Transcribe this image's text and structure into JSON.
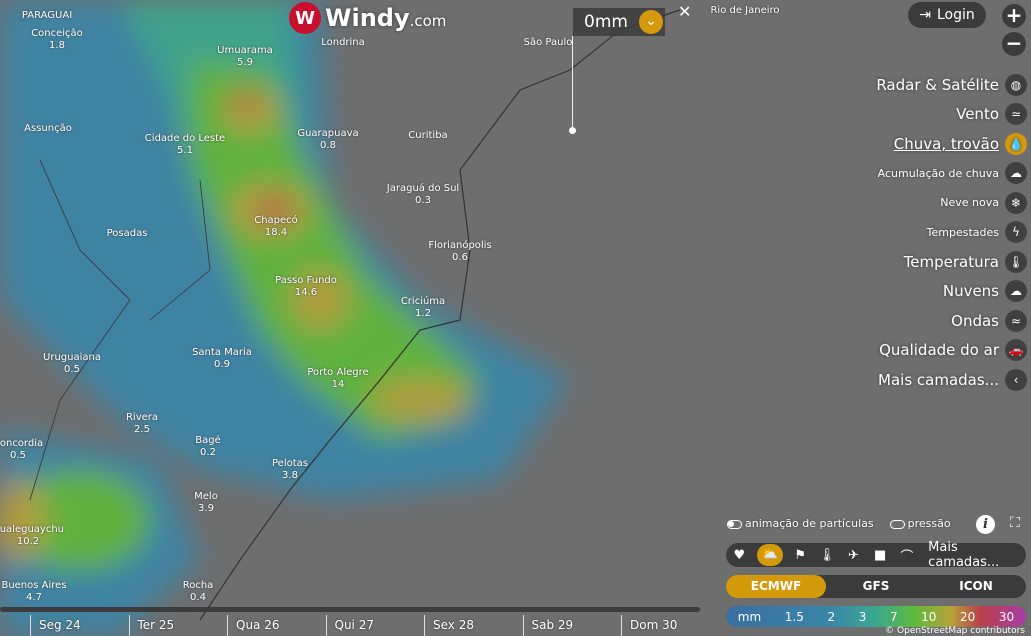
{
  "app": {
    "logo_text": "Windy",
    "logo_suffix": ".com",
    "logo_mark": "W"
  },
  "picker": {
    "value": "0mm",
    "close": "✕"
  },
  "header": {
    "login": "Login",
    "zoom_in": "+",
    "zoom_out": "−"
  },
  "layers": [
    {
      "label": "Radar & Satélite",
      "icon": "globe-icon",
      "glyph": "◍",
      "small": false
    },
    {
      "label": "Vento",
      "icon": "wind-icon",
      "glyph": "≃",
      "small": false
    },
    {
      "label": "Chuva, trovão",
      "icon": "raindrop-icon",
      "glyph": "💧",
      "small": false,
      "active": true
    },
    {
      "label": "Acumulação de chuva",
      "icon": "cloud-rain-icon",
      "glyph": "☁",
      "small": true
    },
    {
      "label": "Neve nova",
      "icon": "snowflake-icon",
      "glyph": "❄",
      "small": true
    },
    {
      "label": "Tempestades",
      "icon": "lightning-icon",
      "glyph": "ϟ",
      "small": true
    },
    {
      "label": "Temperatura",
      "icon": "thermometer-icon",
      "glyph": "🌡",
      "small": false
    },
    {
      "label": "Nuvens",
      "icon": "cloud-icon",
      "glyph": "☁",
      "small": false
    },
    {
      "label": "Ondas",
      "icon": "waves-icon",
      "glyph": "≈",
      "small": false
    },
    {
      "label": "Qualidade do ar",
      "icon": "car-icon",
      "glyph": "🚗",
      "small": false
    },
    {
      "label": "Mais camadas...",
      "icon": "chevron-left-icon",
      "glyph": "‹",
      "small": false
    }
  ],
  "options": {
    "particles": "animação de partículas",
    "pressure": "pressão",
    "info": "i",
    "fullscreen": "⛶"
  },
  "quickbar": {
    "icons": [
      "heart-icon",
      "weather-icon",
      "windsock-icon",
      "thermometer-icon",
      "airplane-icon",
      "camera-icon",
      "satellite-dish-icon"
    ],
    "glyphs": [
      "♥",
      "⛅",
      "⚑",
      "🌡",
      "✈",
      "■",
      "⌒"
    ],
    "more": "Mais camadas..."
  },
  "models": [
    "ECMWF",
    "GFS",
    "ICON"
  ],
  "active_model": "ECMWF",
  "legend": [
    "mm",
    "1.5",
    "2",
    "3",
    "7",
    "10",
    "20",
    "30"
  ],
  "attribution": "© OpenStreetMap contributors",
  "timeline": [
    "Seg 24",
    "Ter 25",
    "Qua 26",
    "Qui 27",
    "Sex 28",
    "Sab 29",
    "Dom 30"
  ],
  "colors": {
    "accent": "#d49a0c",
    "brand": "#c8102e"
  },
  "cities": [
    {
      "name": "PARAGUAI",
      "val": ""
    },
    {
      "name": "Conceição",
      "val": "1.8"
    },
    {
      "name": "Umuarama",
      "val": "5.9"
    },
    {
      "name": "Londrina",
      "val": ""
    },
    {
      "name": "São Paulo",
      "val": ""
    },
    {
      "name": "Rio de Janeiro",
      "val": ""
    },
    {
      "name": "Assunção",
      "val": ""
    },
    {
      "name": "Cidade do Leste",
      "val": "5.1"
    },
    {
      "name": "Guarapuava",
      "val": "0.8"
    },
    {
      "name": "Curitiba",
      "val": ""
    },
    {
      "name": "Jaraguá do Sul",
      "val": "0.3"
    },
    {
      "name": "Chapecó",
      "val": "18.4"
    },
    {
      "name": "Posadas",
      "val": ""
    },
    {
      "name": "Florianópolis",
      "val": "0.6"
    },
    {
      "name": "Passo Fundo",
      "val": "14.6"
    },
    {
      "name": "Criciúma",
      "val": "1.2"
    },
    {
      "name": "Uruguaiana",
      "val": "0.5"
    },
    {
      "name": "Santa Maria",
      "val": "0.9"
    },
    {
      "name": "Porto Alegre",
      "val": "14"
    },
    {
      "name": "Rivera",
      "val": "2.5"
    },
    {
      "name": "Bagé",
      "val": "0.2"
    },
    {
      "name": "Concordia",
      "val": "0.5"
    },
    {
      "name": "Pelotas",
      "val": "3.8"
    },
    {
      "name": "Melo",
      "val": "3.9"
    },
    {
      "name": "Gualeguaychu",
      "val": "10.2"
    },
    {
      "name": "Buenos Aires",
      "val": "4.7"
    },
    {
      "name": "Rocha",
      "val": "0.4"
    }
  ]
}
